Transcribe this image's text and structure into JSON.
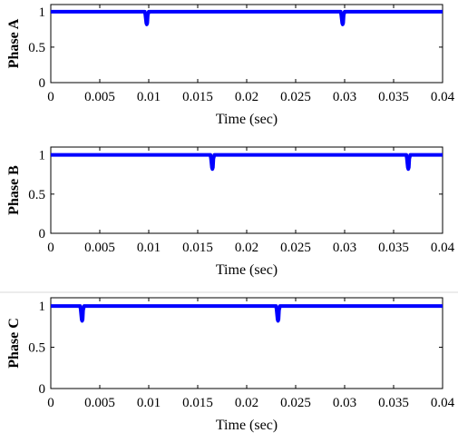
{
  "chart_data": [
    {
      "type": "line",
      "xlabel": "Time (sec)",
      "ylabel": "Phase A",
      "xlim": [
        0,
        0.04
      ],
      "ylim": [
        0,
        1.1
      ],
      "x_ticks": [
        "0",
        "0.005",
        "0.01",
        "0.015",
        "0.02",
        "0.025",
        "0.03",
        "0.035",
        "0.04"
      ],
      "y_ticks": [
        "0",
        "0.5",
        "1"
      ],
      "grid": false,
      "line_color": "#0000ff",
      "series": [
        {
          "x": [
            0,
            0.0096,
            0.00965,
            0.0097,
            0.00975,
            0.0098,
            0.00985,
            0.0099,
            0.01,
            0.0296,
            0.02965,
            0.0297,
            0.02975,
            0.0298,
            0.02985,
            0.0299,
            0.03,
            0.04
          ],
          "y": [
            1,
            1,
            0.96,
            0.9,
            0.84,
            0.82,
            0.84,
            0.95,
            1,
            1,
            0.96,
            0.9,
            0.84,
            0.82,
            0.84,
            0.95,
            1,
            1
          ]
        }
      ]
    },
    {
      "type": "line",
      "xlabel": "Time (sec)",
      "ylabel": "Phase B",
      "xlim": [
        0,
        0.04
      ],
      "ylim": [
        0,
        1.1
      ],
      "x_ticks": [
        "0",
        "0.005",
        "0.01",
        "0.015",
        "0.02",
        "0.025",
        "0.03",
        "0.035",
        "0.04"
      ],
      "y_ticks": [
        "0",
        "0.5",
        "1"
      ],
      "grid": false,
      "line_color": "#0000ff",
      "series": [
        {
          "x": [
            0,
            0.0163,
            0.01635,
            0.0164,
            0.01645,
            0.0165,
            0.01655,
            0.0166,
            0.0167,
            0.0363,
            0.03635,
            0.0364,
            0.03645,
            0.0365,
            0.03655,
            0.0366,
            0.0367,
            0.04
          ],
          "y": [
            1,
            1,
            0.96,
            0.9,
            0.84,
            0.82,
            0.84,
            0.95,
            1,
            1,
            0.96,
            0.9,
            0.84,
            0.82,
            0.84,
            0.95,
            1,
            1
          ]
        }
      ]
    },
    {
      "type": "line",
      "xlabel": "Time (sec)",
      "ylabel": "Phase C",
      "xlim": [
        0,
        0.04
      ],
      "ylim": [
        0,
        1.1
      ],
      "x_ticks": [
        "0",
        "0.005",
        "0.01",
        "0.015",
        "0.02",
        "0.025",
        "0.03",
        "0.035",
        "0.04"
      ],
      "y_ticks": [
        "0",
        "0.5",
        "1"
      ],
      "grid": false,
      "line_color": "#0000ff",
      "series": [
        {
          "x": [
            0,
            0.003,
            0.00305,
            0.0031,
            0.00315,
            0.0032,
            0.00325,
            0.0033,
            0.0034,
            0.023,
            0.02305,
            0.0231,
            0.02315,
            0.0232,
            0.02325,
            0.0233,
            0.0234,
            0.04
          ],
          "y": [
            1,
            1,
            0.96,
            0.9,
            0.84,
            0.82,
            0.84,
            0.95,
            1,
            1,
            0.96,
            0.9,
            0.84,
            0.82,
            0.84,
            0.95,
            1,
            1
          ]
        }
      ]
    }
  ]
}
